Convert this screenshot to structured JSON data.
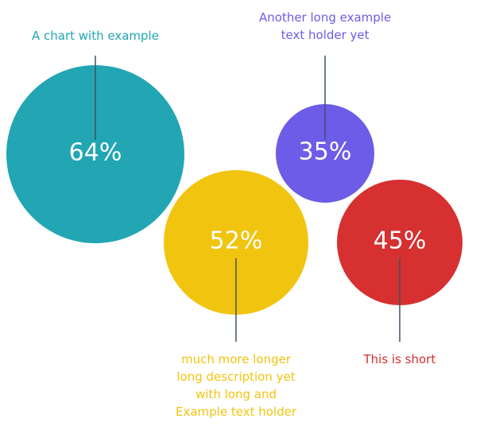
{
  "chart_data": {
    "type": "bubble",
    "bubbles": [
      {
        "value": 64,
        "label": "64%",
        "color": "#22a6b3",
        "caption": [
          "A chart with example"
        ]
      },
      {
        "value": 35,
        "label": "35%",
        "color": "#6c5ce7",
        "caption": [
          "Another long example",
          "text holder yet"
        ]
      },
      {
        "value": 52,
        "label": "52%",
        "color": "#f1c40f",
        "caption": [
          "much more longer",
          "long description yet",
          "with long and",
          "Example text holder"
        ]
      },
      {
        "value": 45,
        "label": "45%",
        "color": "#d63031",
        "caption": [
          "This is short"
        ]
      }
    ]
  }
}
